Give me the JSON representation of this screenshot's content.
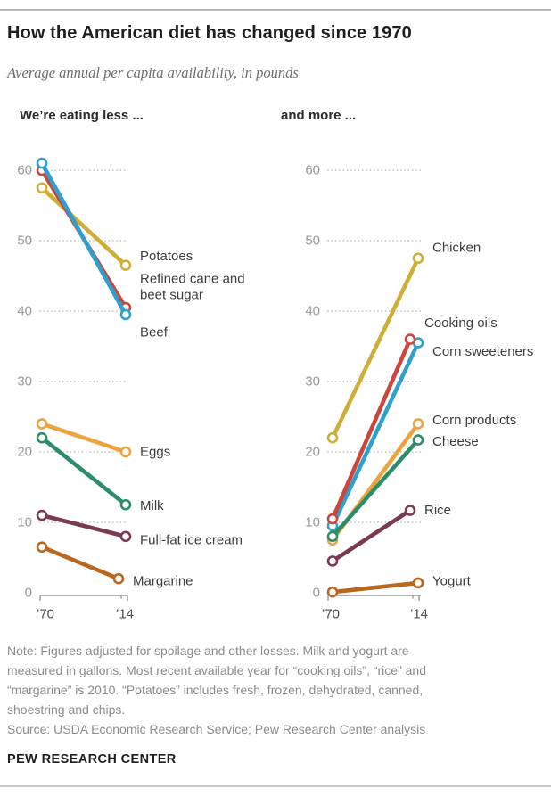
{
  "page": {
    "title": "How the American diet has changed since 1970",
    "subtitle": "Average annual per capita availability, in pounds",
    "note_lines": [
      "Note: Figures adjusted for spoilage and other losses. Milk and yogurt are",
      "measured in gallons. Most recent available year for “cooking oils”, “rice” and",
      "“margarine” is 2010. “Potatoes” includes fresh, frozen, dehydrated, canned,",
      "shoestring and chips.",
      "Source: USDA Economic Research Service; Pew Research Center analysis"
    ],
    "footer": "PEW RESEARCH CENTER"
  },
  "chart_data": [
    {
      "type": "line",
      "subtype": "slope",
      "title": "We’re eating less ...",
      "x": [
        1970,
        2014
      ],
      "x_categories": [
        "’70",
        "’14"
      ],
      "ylim": [
        0,
        65
      ],
      "yticks": [
        0,
        10,
        20,
        30,
        40,
        50,
        60
      ],
      "grid": "dotted-horizontal",
      "unit": "pounds",
      "series": [
        {
          "name": "Potatoes",
          "color": "#CFAE35",
          "values": [
            57.5,
            46.5
          ],
          "end_year": 2014,
          "label_lines": [
            "Potatoes"
          ],
          "label_dy": -10
        },
        {
          "name": "Refined cane and beet sugar",
          "color": "#CB463D",
          "values": [
            60,
            40.5
          ],
          "end_year": 2014,
          "label_lines": [
            "Refined cane and",
            "beet sugar"
          ],
          "label_dy": -32
        },
        {
          "name": "Beef",
          "color": "#2EA0CE",
          "values": [
            61,
            39.5
          ],
          "end_year": 2014,
          "label_lines": [
            "Beef"
          ],
          "label_dy": 20
        },
        {
          "name": "Eggs",
          "color": "#EDA33D",
          "values": [
            24,
            20
          ],
          "end_year": 2014,
          "label_lines": [
            "Eggs"
          ],
          "label_dy": 0
        },
        {
          "name": "Milk",
          "color": "#2E8C6A",
          "values": [
            22,
            12.5
          ],
          "end_year": 2014,
          "label_lines": [
            "Milk"
          ],
          "label_dy": 1
        },
        {
          "name": "Full-fat ice cream",
          "color": "#7A3A54",
          "values": [
            11,
            8
          ],
          "end_year": 2014,
          "label_lines": [
            "Full-fat ice cream"
          ],
          "label_dy": 4
        },
        {
          "name": "Margarine",
          "color": "#B9671F",
          "values": [
            6.5,
            2
          ],
          "end_year": 2010,
          "label_lines": [
            "Margarine"
          ],
          "label_dy": 3
        }
      ]
    },
    {
      "type": "line",
      "subtype": "slope",
      "title": "and more ...",
      "x": [
        1970,
        2014
      ],
      "x_categories": [
        "’70",
        "’14"
      ],
      "ylim": [
        0,
        65
      ],
      "yticks": [
        0,
        10,
        20,
        30,
        40,
        50,
        60
      ],
      "grid": "dotted-horizontal",
      "unit": "pounds",
      "series": [
        {
          "name": "Chicken",
          "color": "#CFAE35",
          "values": [
            22,
            47.5
          ],
          "end_year": 2014,
          "label_lines": [
            "Chicken"
          ],
          "label_dy": -12
        },
        {
          "name": "Corn sweeteners",
          "color": "#2EA0CE",
          "values": [
            9.5,
            35.5
          ],
          "end_year": 2014,
          "label_lines": [
            "Corn sweeteners"
          ],
          "label_dy": 10
        },
        {
          "name": "Cooking oils",
          "color": "#CB463D",
          "values": [
            10.5,
            36
          ],
          "end_year": 2010,
          "label_lines": [
            "Cooking oils"
          ],
          "label_dy": -18
        },
        {
          "name": "Corn products",
          "color": "#EDA33D",
          "values": [
            7.5,
            24
          ],
          "end_year": 2014,
          "label_lines": [
            "Corn products"
          ],
          "label_dy": -4
        },
        {
          "name": "Cheese",
          "color": "#2E8C6A",
          "values": [
            8,
            21.7
          ],
          "end_year": 2014,
          "label_lines": [
            "Cheese"
          ],
          "label_dy": 2
        },
        {
          "name": "Rice",
          "color": "#7A3A54",
          "values": [
            4.5,
            11.7
          ],
          "end_year": 2010,
          "label_lines": [
            "Rice"
          ],
          "label_dy": 0
        },
        {
          "name": "Yogurt",
          "color": "#B9671F",
          "values": [
            0.1,
            1.4
          ],
          "end_year": 2014,
          "label_lines": [
            "Yogurt"
          ],
          "label_dy": -2
        }
      ]
    }
  ]
}
